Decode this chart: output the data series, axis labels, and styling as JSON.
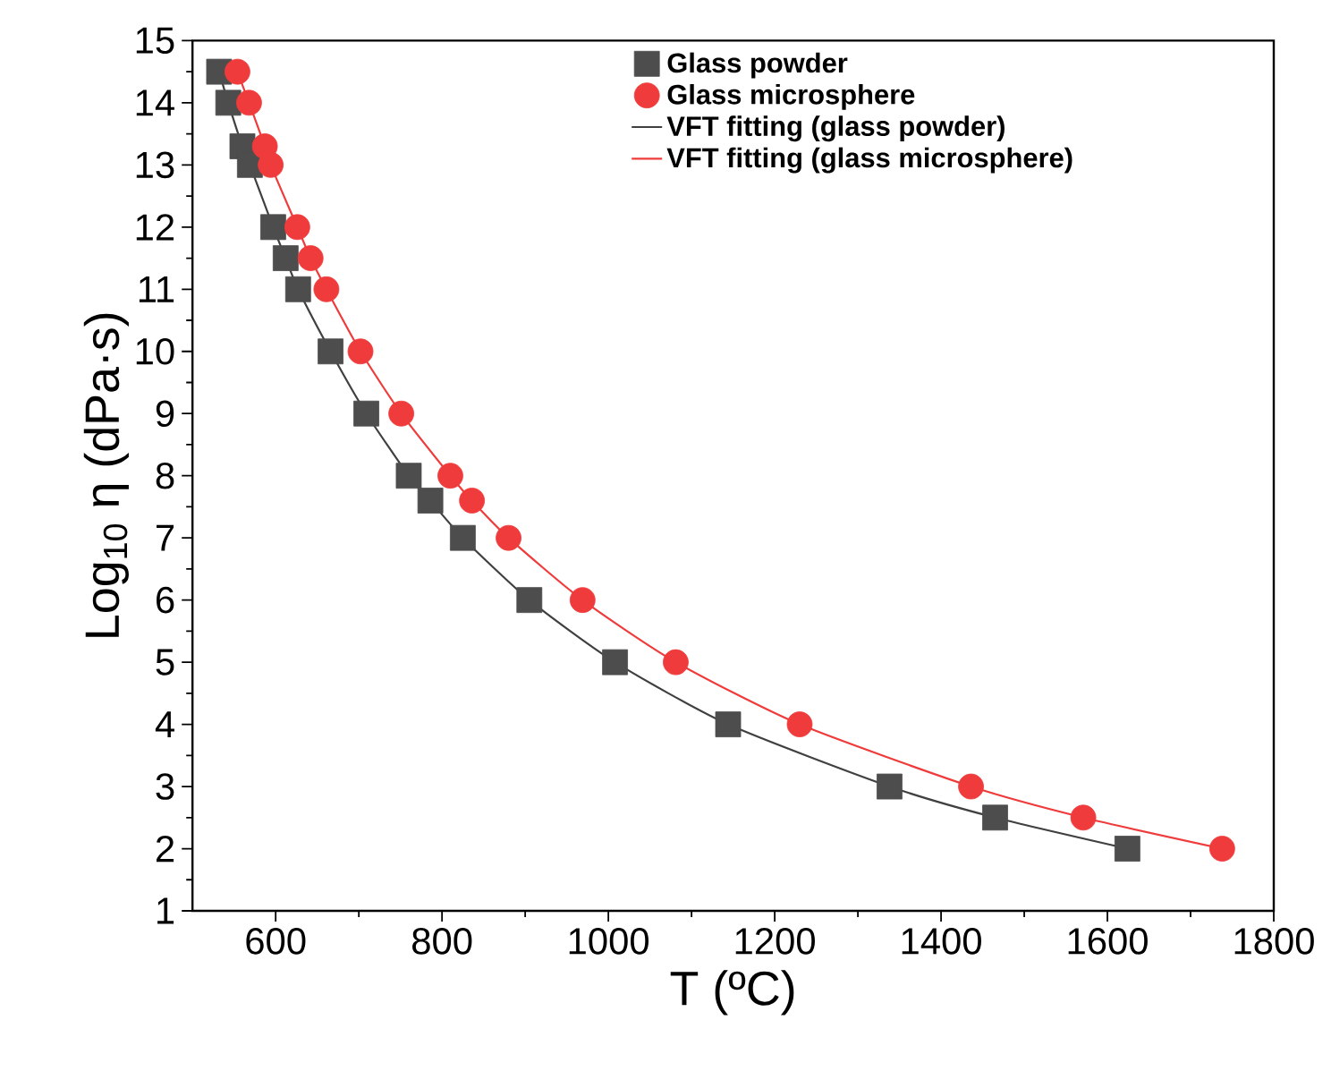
{
  "chart_data": {
    "type": "scatter",
    "xlabel": "T (ºC)",
    "ylabel": "Log$_{10}$ η (dPa·s)",
    "xlim": [
      500,
      1800
    ],
    "xticks": [
      600,
      800,
      1000,
      1200,
      1400,
      1600,
      1800
    ],
    "ylim": [
      1,
      15
    ],
    "yticks": [
      1,
      2,
      3,
      4,
      5,
      6,
      7,
      8,
      9,
      10,
      11,
      12,
      13,
      14,
      15
    ],
    "legend": "top right",
    "series": [
      {
        "name": "Glass powder",
        "marker": "square",
        "color": "#4d4d4d",
        "x": [
          532,
          543,
          560,
          569,
          597,
          612,
          627,
          666,
          709,
          760,
          786,
          825,
          905,
          1008,
          1144,
          1338,
          1465,
          1624
        ],
        "values": [
          14.5,
          14,
          13.3,
          13,
          12,
          11.5,
          11,
          10,
          9,
          8,
          7.6,
          7,
          6,
          5,
          4,
          3,
          2.5,
          2
        ]
      },
      {
        "name": "Glass microsphere",
        "marker": "circle",
        "color": "#ef3b3b",
        "x": [
          554,
          568,
          587,
          594,
          626,
          642,
          661,
          702,
          751,
          810,
          836,
          880,
          969,
          1081,
          1230,
          1436,
          1571,
          1738
        ],
        "values": [
          14.5,
          14,
          13.3,
          13,
          12,
          11.5,
          11,
          10,
          9,
          8,
          7.6,
          7,
          6,
          5,
          4,
          3,
          2.5,
          2
        ]
      },
      {
        "name": "VFT fitting (glass powder)",
        "type": "line",
        "marker": "none",
        "line_style": "solid",
        "color": "#404040",
        "x": [
          532,
          543,
          560,
          569,
          597,
          612,
          627,
          666,
          709,
          760,
          786,
          825,
          905,
          1008,
          1144,
          1338,
          1465,
          1624
        ],
        "values": [
          14.5,
          14,
          13.3,
          13,
          12,
          11.5,
          11,
          10,
          9,
          8,
          7.6,
          7,
          6,
          5,
          4,
          3,
          2.5,
          2
        ]
      },
      {
        "name": "VFT fitting (glass microsphere)",
        "type": "line",
        "marker": "none",
        "line_style": "solid",
        "color": "#ef3b3b",
        "x": [
          554,
          568,
          587,
          594,
          626,
          642,
          661,
          702,
          751,
          810,
          836,
          880,
          969,
          1081,
          1230,
          1436,
          1571,
          1738
        ],
        "values": [
          14.5,
          14,
          13.3,
          13,
          12,
          11.5,
          11,
          10,
          9,
          8,
          7.6,
          7,
          6,
          5,
          4,
          3,
          2.5,
          2
        ]
      }
    ]
  }
}
